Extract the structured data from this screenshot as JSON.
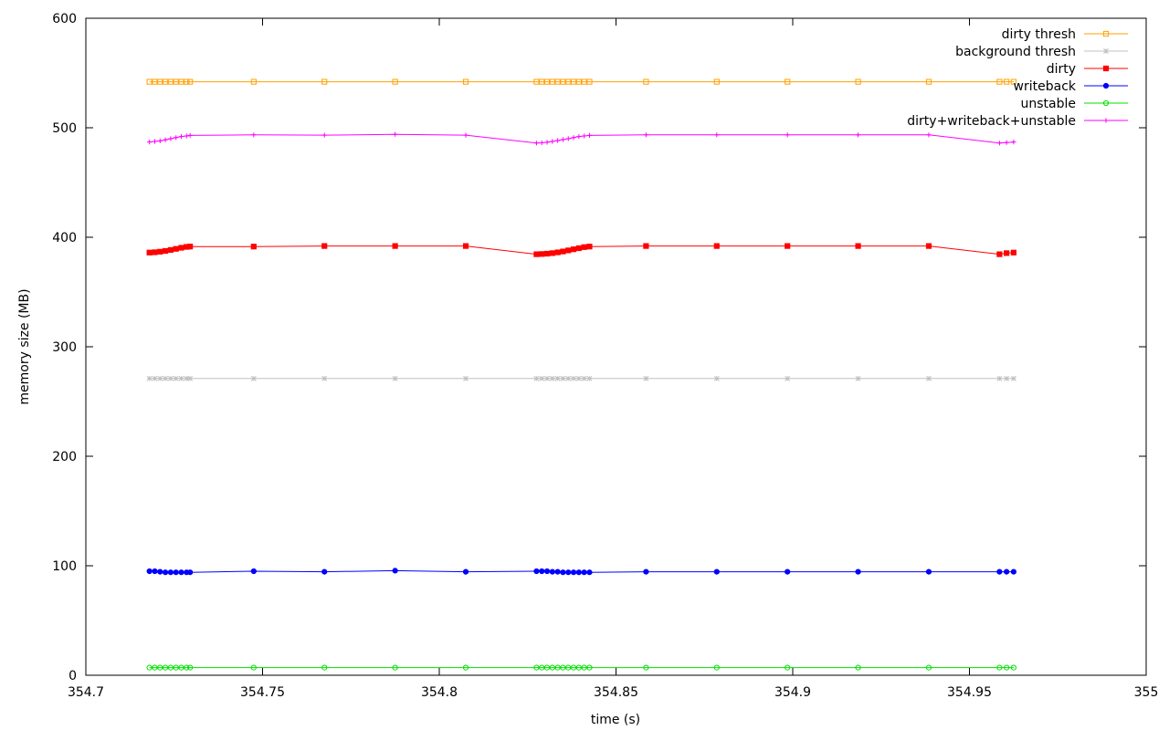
{
  "chart_data": {
    "type": "line",
    "title": "",
    "xlabel": "time (s)",
    "ylabel": "memory size (MB)",
    "xlim": [
      354.7,
      355
    ],
    "ylim": [
      0,
      600
    ],
    "xticks": [
      354.7,
      354.75,
      354.8,
      354.85,
      354.9,
      354.95,
      355
    ],
    "yticks": [
      0,
      100,
      200,
      300,
      400,
      500,
      600
    ],
    "xtick_labels": [
      "354.7",
      "354.75",
      "354.8",
      "354.85",
      "354.9",
      "354.95",
      "355"
    ],
    "ytick_labels": [
      "0",
      "100",
      "200",
      "300",
      "400",
      "500",
      "600"
    ],
    "grid": false,
    "legend_position": "top-right",
    "x": [
      354.718,
      354.7195,
      354.721,
      354.7225,
      354.724,
      354.7255,
      354.727,
      354.7285,
      354.7295,
      354.7475,
      354.7675,
      354.7875,
      354.8075,
      354.8275,
      354.829,
      354.8305,
      354.832,
      354.8335,
      354.835,
      354.8365,
      354.838,
      354.8395,
      354.841,
      354.8425,
      354.8585,
      354.8785,
      354.8985,
      354.9185,
      354.9385,
      354.9585,
      354.9605,
      354.9625
    ],
    "series": [
      {
        "name": "dirty thresh",
        "color": "#ffa000",
        "marker": "square-open",
        "values": [
          542,
          542,
          542,
          542,
          542,
          542,
          542,
          542,
          542,
          542,
          542,
          542,
          542,
          542,
          542,
          542,
          542,
          542,
          542,
          542,
          542,
          542,
          542,
          542,
          542,
          542,
          542,
          542,
          542,
          542,
          542,
          542
        ]
      },
      {
        "name": "background thresh",
        "color": "#c0c0c0",
        "marker": "star",
        "values": [
          271,
          271,
          271,
          271,
          271,
          271,
          271,
          271,
          271,
          271,
          271,
          271,
          271,
          271,
          271,
          271,
          271,
          271,
          271,
          271,
          271,
          271,
          271,
          271,
          271,
          271,
          271,
          271,
          271,
          271,
          271,
          271
        ]
      },
      {
        "name": "dirty",
        "color": "#ff0000",
        "marker": "square-filled",
        "values": [
          386,
          386.3,
          386.8,
          387.5,
          388.4,
          389.4,
          390.4,
          391.2,
          391.5,
          391.5,
          392,
          392,
          392,
          384.5,
          384.7,
          385,
          385.5,
          386.2,
          387,
          388,
          389,
          390,
          391,
          391.5,
          392,
          392,
          392,
          392,
          392,
          384.5,
          385.5,
          386
        ]
      },
      {
        "name": "writeback",
        "color": "#0000ff",
        "marker": "circle-filled",
        "values": [
          95,
          95,
          94.5,
          94,
          94,
          94,
          94,
          94,
          94,
          95,
          94.5,
          95.5,
          94.5,
          95,
          95,
          95,
          94.5,
          94.5,
          94,
          94,
          94,
          94,
          94,
          94,
          94.5,
          94.5,
          94.5,
          94.5,
          94.5,
          94.5,
          94.5,
          94.5
        ]
      },
      {
        "name": "unstable",
        "color": "#00e000",
        "marker": "circle-open",
        "values": [
          7,
          7,
          7,
          7,
          7,
          7,
          7,
          7,
          7,
          7,
          7,
          7,
          7,
          7,
          7,
          7,
          7,
          7,
          7,
          7,
          7,
          7,
          7,
          7,
          7,
          7,
          7,
          7,
          7,
          7,
          7,
          7
        ]
      },
      {
        "name": "dirty+writeback+unstable",
        "color": "#ff00ff",
        "marker": "plus",
        "values": [
          487,
          487.5,
          488,
          489,
          490,
          491,
          492,
          492.5,
          493,
          493.5,
          493.2,
          494,
          493.2,
          486,
          486.3,
          486.8,
          487.5,
          488.3,
          489.2,
          490,
          491,
          492,
          492.5,
          493,
          493.5,
          493.5,
          493.5,
          493.5,
          493.5,
          486,
          486.5,
          487
        ]
      }
    ]
  }
}
